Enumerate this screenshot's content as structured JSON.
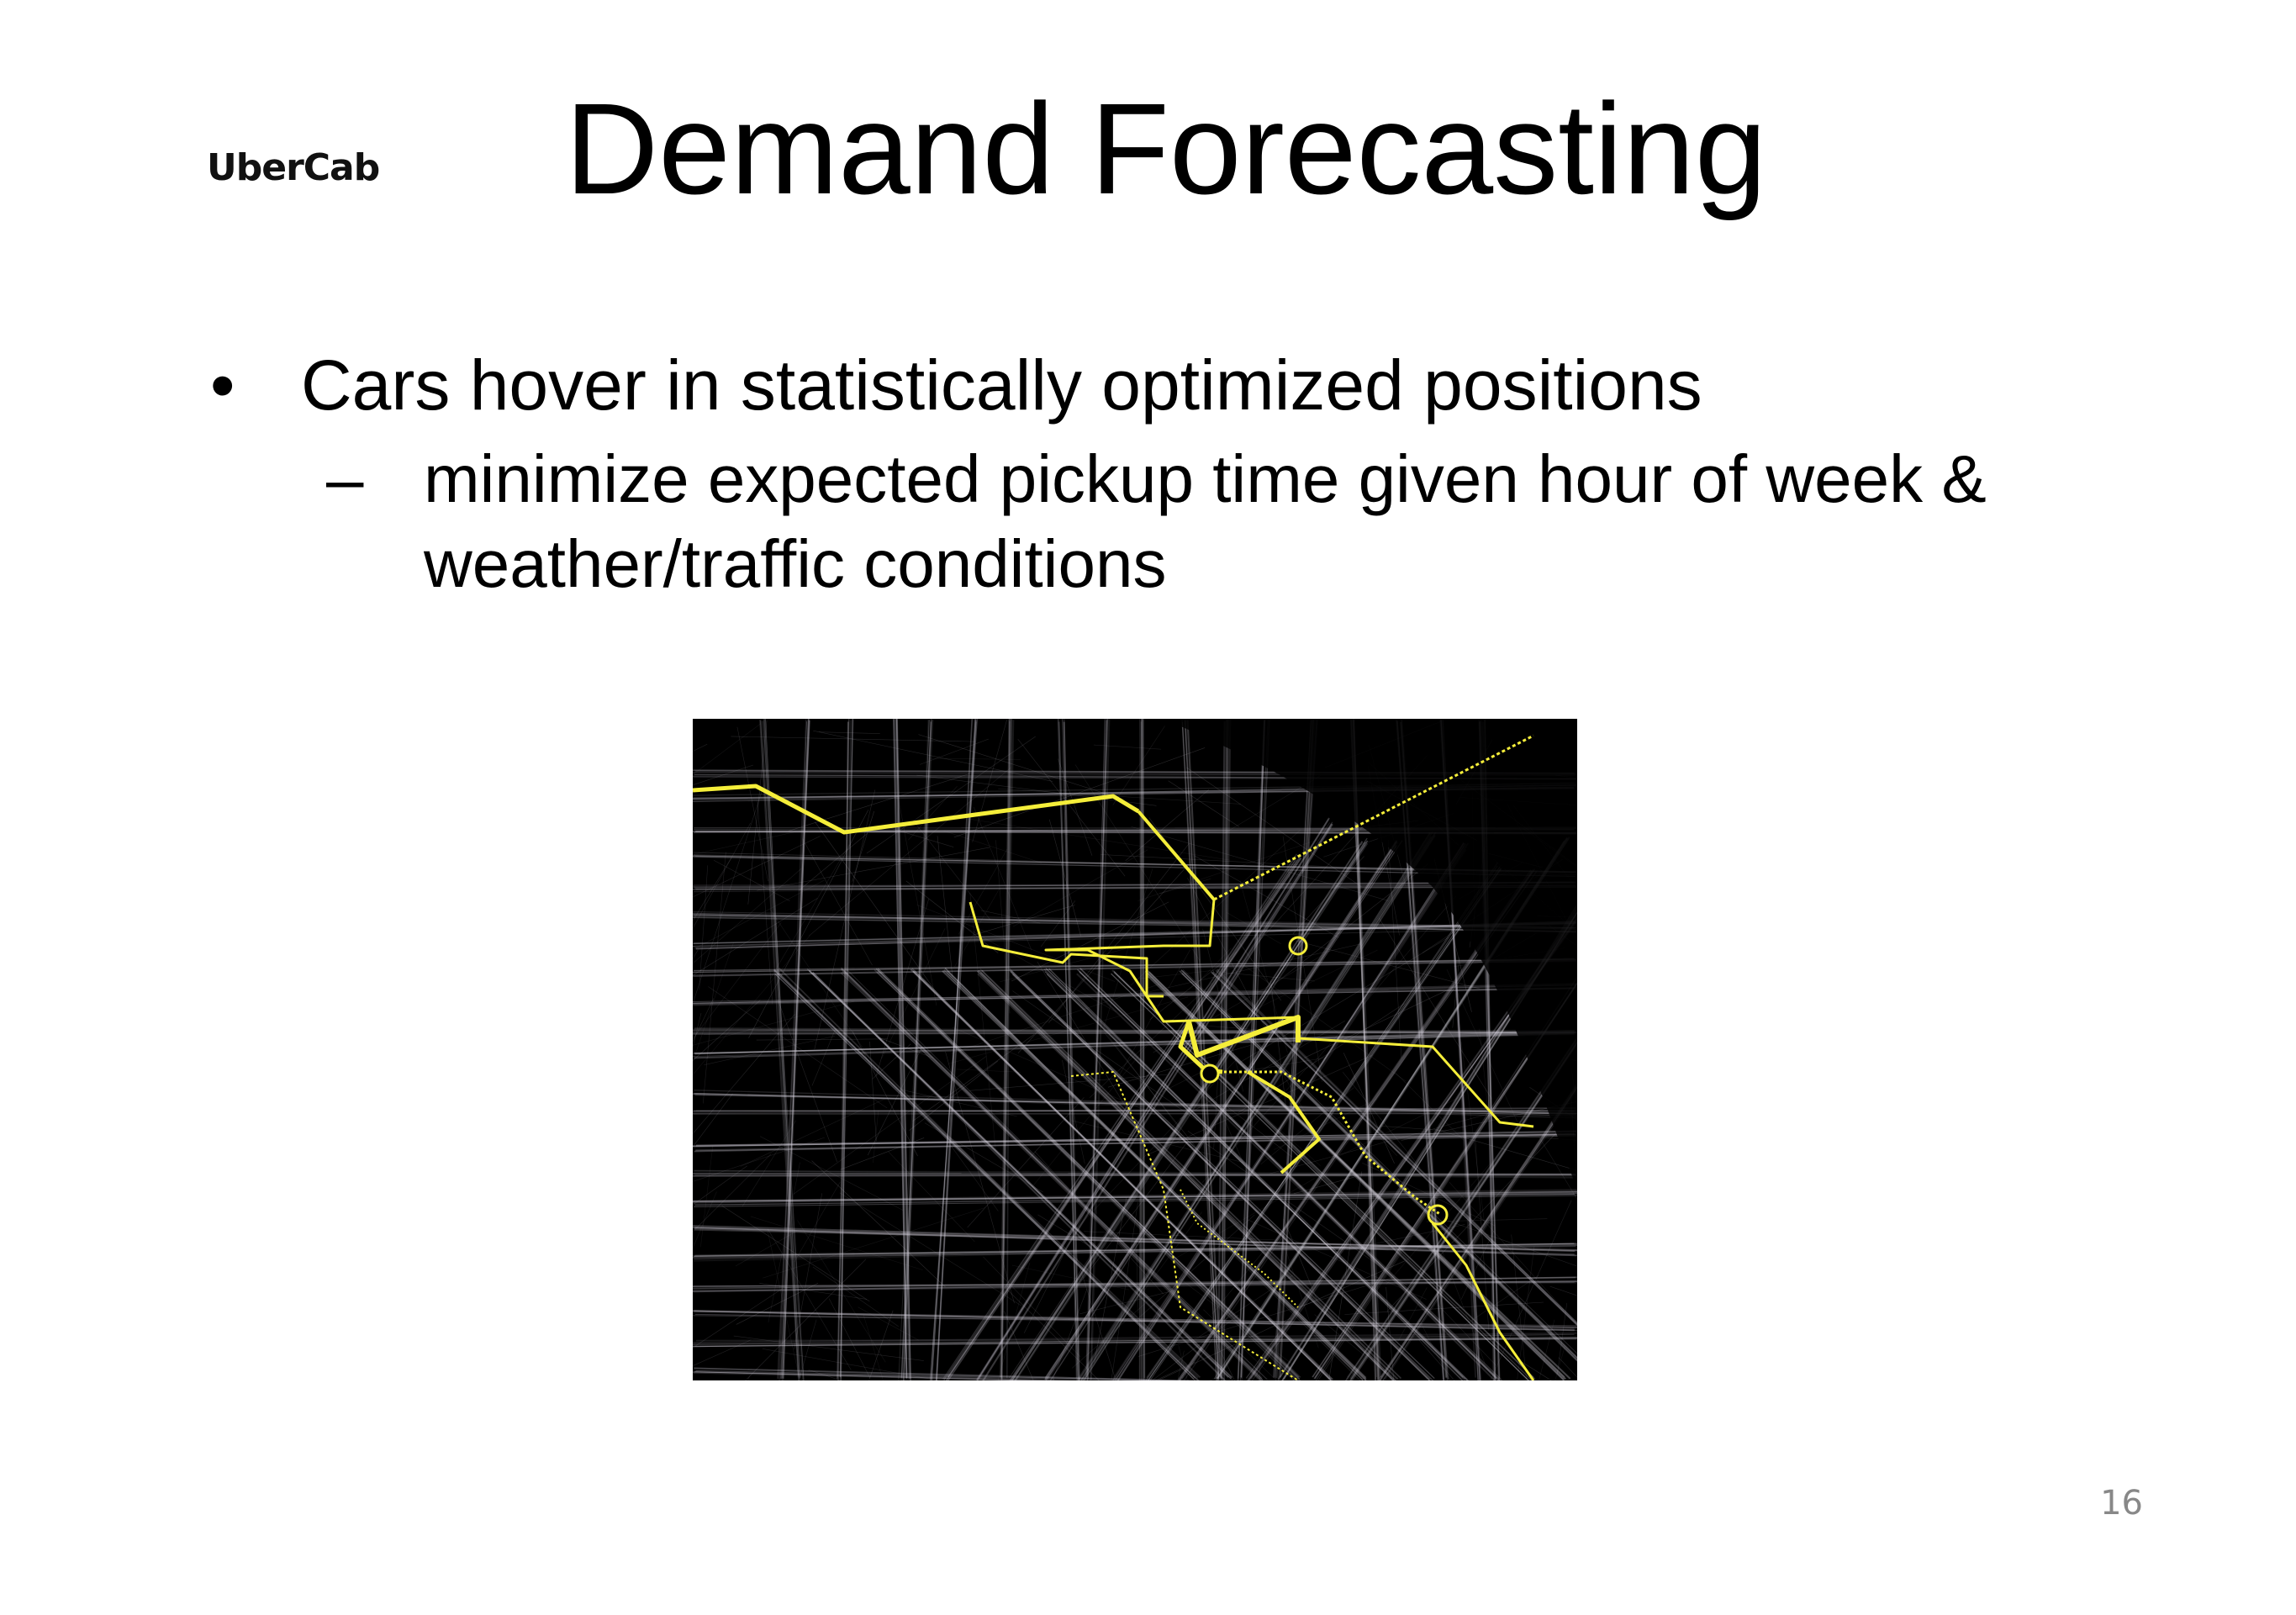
{
  "slide": {
    "logo_text": "UberCab",
    "title": "Demand Forecasting",
    "bullets": [
      {
        "marker": "•",
        "text": "Cars hover in statistically optimized positions",
        "sub_bullets": [
          {
            "marker": "–",
            "text": "minimize expected pickup time given hour of week & weather/traffic conditions"
          }
        ]
      }
    ],
    "image": {
      "background_color": "#000000",
      "street_trace_color": "#d8d4e0",
      "route_color": "#f5ee3a"
    },
    "page_number": "16"
  }
}
